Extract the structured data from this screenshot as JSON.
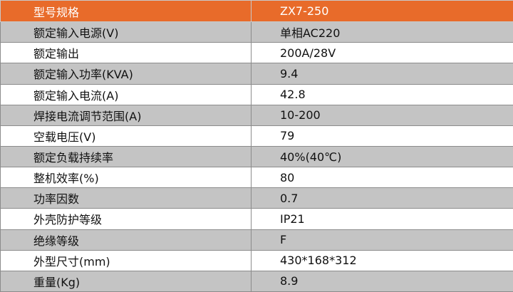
{
  "table": {
    "header": {
      "label": "型号规格",
      "value": "ZX7-250"
    },
    "rows": [
      {
        "label": "额定输入电源(V)",
        "value": "单相AC220"
      },
      {
        "label": "额定输出",
        "value": "200A/28V"
      },
      {
        "label": "额定输入功率(KVA)",
        "value": "9.4"
      },
      {
        "label": "额定输入电流(A)",
        "value": "42.8"
      },
      {
        "label": "焊接电流调节范围(A)",
        "value": "10-200"
      },
      {
        "label": "空载电压(V)",
        "value": "79"
      },
      {
        "label": "额定负载持续率",
        "value": "40%(40℃)"
      },
      {
        "label": "整机效率(%)",
        "value": "80"
      },
      {
        "label": "功率因数",
        "value": "0.7"
      },
      {
        "label": "外壳防护等级",
        "value": "IP21"
      },
      {
        "label": "绝缘等级",
        "value": "F"
      },
      {
        "label": "外型尺寸(mm)",
        "value": "430*168*312"
      },
      {
        "label": "重量(Kg)",
        "value": "8.9"
      }
    ]
  },
  "colors": {
    "header_bg": "#e86b2a",
    "stripe_gray": "#c4c4c4",
    "stripe_white": "#ffffff"
  }
}
